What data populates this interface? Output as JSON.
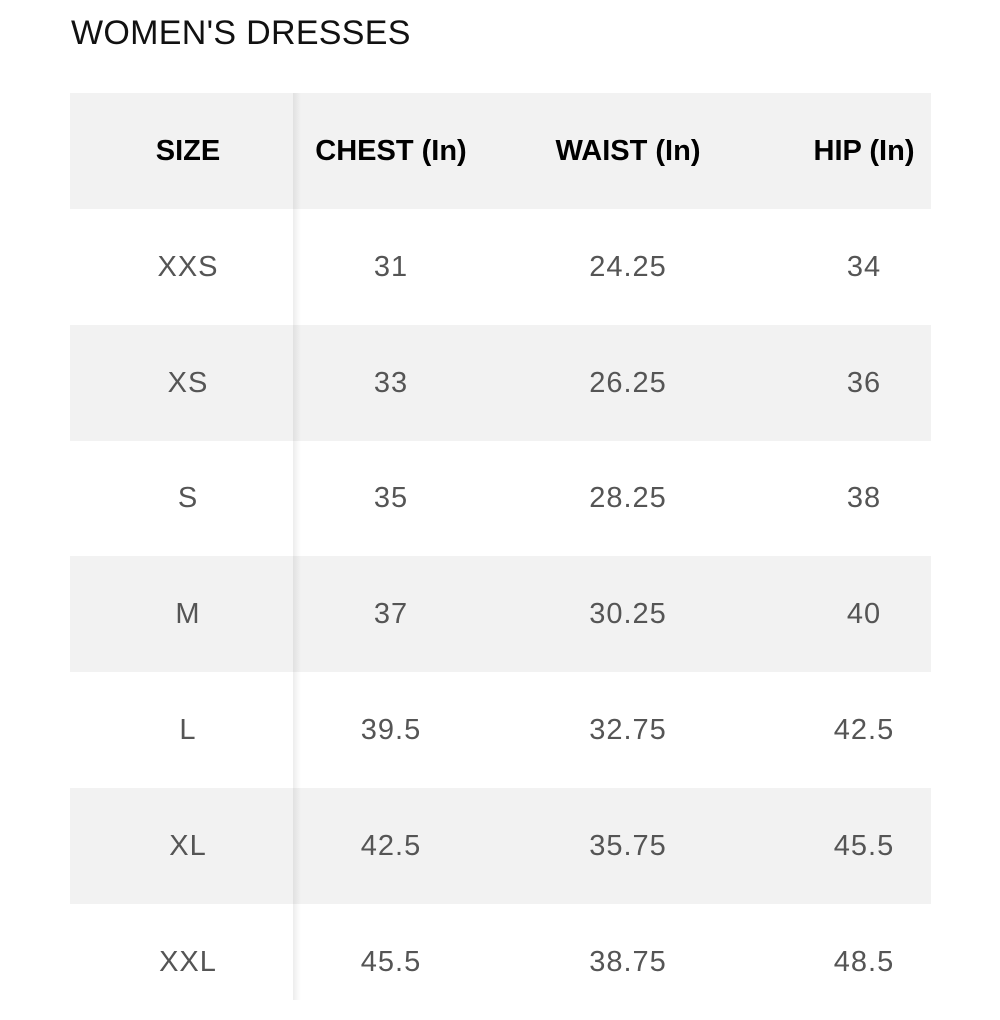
{
  "title": "WOMEN'S DRESSES",
  "table": {
    "header": [
      "SIZE",
      "CHEST (In)",
      "WAIST (In)",
      "HIP (In)"
    ],
    "rows": [
      [
        "XXS",
        "31",
        "24.25",
        "34"
      ],
      [
        "XS",
        "33",
        "26.25",
        "36"
      ],
      [
        "S",
        "35",
        "28.25",
        "38"
      ],
      [
        "M",
        "37",
        "30.25",
        "40"
      ],
      [
        "L",
        "39.5",
        "32.75",
        "42.5"
      ],
      [
        "XL",
        "42.5",
        "35.75",
        "45.5"
      ],
      [
        "XXL",
        "45.5",
        "38.75",
        "48.5"
      ]
    ]
  }
}
